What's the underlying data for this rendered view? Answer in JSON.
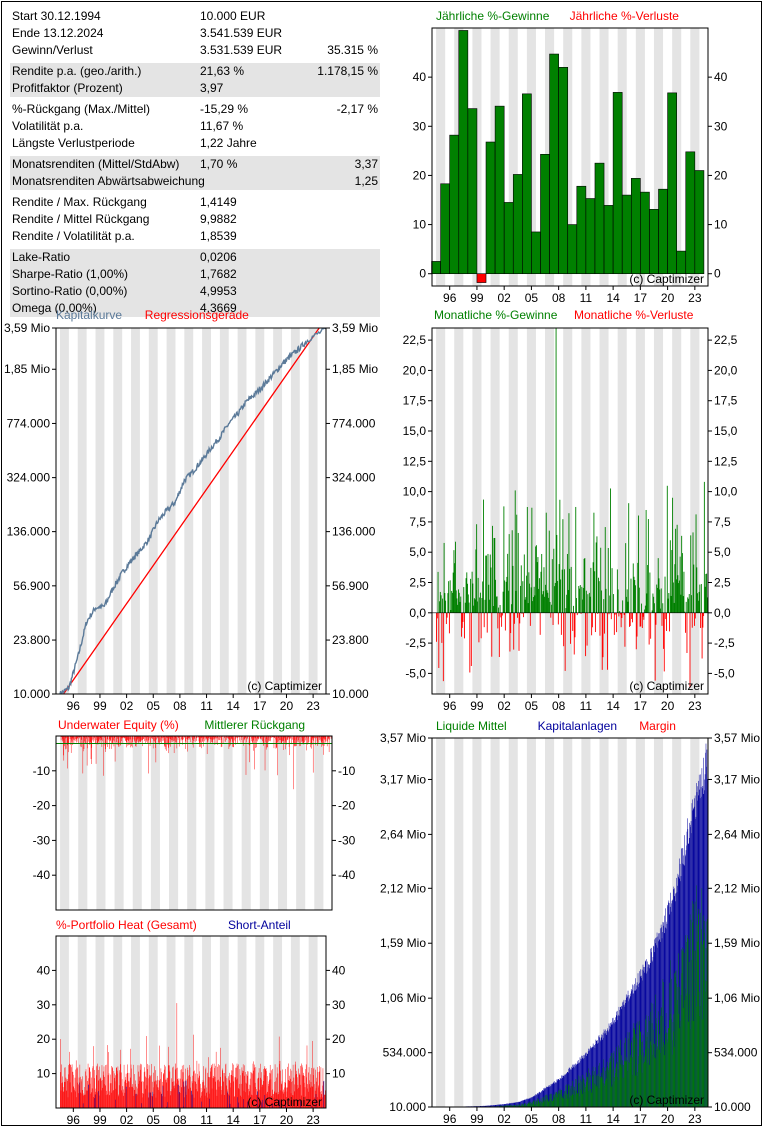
{
  "stats": {
    "groups": [
      {
        "shaded": false,
        "rows": [
          {
            "label": "Start  30.12.1994",
            "v1": "10.000 EUR",
            "v2": ""
          },
          {
            "label": "Ende  13.12.2024",
            "v1": "3.541.539 EUR",
            "v2": ""
          },
          {
            "label": "Gewinn/Verlust",
            "v1": "3.531.539 EUR",
            "v2": "35.315 %"
          }
        ]
      },
      {
        "shaded": true,
        "rows": [
          {
            "label": "Rendite p.a. (geo./arith.)",
            "v1": "21,63 %",
            "v2": "1.178,15 %"
          },
          {
            "label": "Profitfaktor (Prozent)",
            "v1": "3,97",
            "v2": ""
          }
        ]
      },
      {
        "shaded": false,
        "rows": [
          {
            "label": "%-Rückgang (Max./Mittel)",
            "v1": "-15,29 %",
            "v2": "-2,17 %"
          },
          {
            "label": "Volatilität p.a.",
            "v1": "11,67 %",
            "v2": ""
          },
          {
            "label": "Längste Verlustperiode",
            "v1": "1,22  Jahre",
            "v2": ""
          }
        ]
      },
      {
        "shaded": true,
        "rows": [
          {
            "label": "Monatsrenditen (Mittel/StdAbw)",
            "v1": "1,70 %",
            "v2": "3,37"
          },
          {
            "label": "Monatsrenditen Abwärtsabweichung",
            "v1": "",
            "v2": "1,25"
          }
        ]
      },
      {
        "shaded": false,
        "rows": [
          {
            "label": "Rendite / Max. Rückgang",
            "v1": "1,4149",
            "v2": ""
          },
          {
            "label": "Rendite / Mittel Rückgang",
            "v1": "9,9882",
            "v2": ""
          },
          {
            "label": "Rendite / Volatilität p.a.",
            "v1": "1,8539",
            "v2": ""
          }
        ]
      },
      {
        "shaded": true,
        "rows": [
          {
            "label": "Lake-Ratio",
            "v1": "0,0206",
            "v2": ""
          },
          {
            "label": "Sharpe-Ratio (1,00%)",
            "v1": "1,7682",
            "v2": ""
          },
          {
            "label": "Sortino-Ratio (0,00%)",
            "v1": "4,9953",
            "v2": ""
          },
          {
            "label": "Omega (0,00%)",
            "v1": "4,3669",
            "v2": ""
          }
        ]
      }
    ]
  },
  "colors": {
    "green": "#008000",
    "red": "#ff0000",
    "blue": "#00009c",
    "equity": "#5b7a99",
    "band": "#e4e4e4"
  },
  "chart_data": [
    {
      "id": "yearly",
      "type": "bar",
      "legend": [
        {
          "name": "Jährliche %-Gewinne",
          "color": "#008000"
        },
        {
          "name": "Jährliche %-Verluste",
          "color": "#ff0000"
        }
      ],
      "x": [
        1995,
        1996,
        1997,
        1998,
        1999,
        2000,
        2001,
        2002,
        2003,
        2004,
        2005,
        2006,
        2007,
        2008,
        2009,
        2010,
        2011,
        2012,
        2013,
        2014,
        2015,
        2016,
        2017,
        2018,
        2019,
        2020,
        2021,
        2022,
        2023,
        2024
      ],
      "values": [
        2.5,
        18.3,
        28.2,
        49.5,
        33.6,
        -1.8,
        26.8,
        34.1,
        14.5,
        20.2,
        36.6,
        8.5,
        24.3,
        44.7,
        42.0,
        10.0,
        17.8,
        15.3,
        22.5,
        13.9,
        36.9,
        16.0,
        19.4,
        16.6,
        13.1,
        17.2,
        36.8,
        4.6,
        24.8,
        21.0
      ],
      "ylim": [
        -2.5,
        50
      ],
      "yticks": [
        0,
        10,
        20,
        30,
        40
      ],
      "xticks": [
        "96",
        "99",
        "02",
        "05",
        "08",
        "11",
        "14",
        "17",
        "20",
        "23"
      ],
      "watermark": "(c) Captimizer"
    },
    {
      "id": "equity",
      "type": "line",
      "scale": "log",
      "legend": [
        {
          "name": "Kapitalkurve",
          "color": "#5b7a99"
        },
        {
          "name": "Regressionsgerade",
          "color": "#ff0000"
        }
      ],
      "points": [
        [
          1995.0,
          10000
        ],
        [
          1996.0,
          11000
        ],
        [
          1997.0,
          18000
        ],
        [
          1998.0,
          32000
        ],
        [
          1999.0,
          40000
        ],
        [
          2000.0,
          41000
        ],
        [
          2001.0,
          55000
        ],
        [
          2002.0,
          70000
        ],
        [
          2003.0,
          85000
        ],
        [
          2004.0,
          100000
        ],
        [
          2005.0,
          120000
        ],
        [
          2006.0,
          160000
        ],
        [
          2007.0,
          190000
        ],
        [
          2008.0,
          220000
        ],
        [
          2009.0,
          310000
        ],
        [
          2010.0,
          360000
        ],
        [
          2011.0,
          430000
        ],
        [
          2012.0,
          520000
        ],
        [
          2013.0,
          620000
        ],
        [
          2014.0,
          770000
        ],
        [
          2015.0,
          900000
        ],
        [
          2016.0,
          1100000
        ],
        [
          2017.0,
          1250000
        ],
        [
          2018.0,
          1450000
        ],
        [
          2019.0,
          1700000
        ],
        [
          2020.0,
          2000000
        ],
        [
          2021.0,
          2300000
        ],
        [
          2022.0,
          2600000
        ],
        [
          2023.0,
          3000000
        ],
        [
          2024.95,
          3541539
        ]
      ],
      "regression": [
        [
          1994.6,
          8500
        ],
        [
          2024.95,
          4200000
        ]
      ],
      "ylim": [
        10000,
        3590000
      ],
      "yticks": [
        {
          "v": 10000,
          "label": "10.000"
        },
        {
          "v": 23800,
          "label": "23.800"
        },
        {
          "v": 56900,
          "label": "56.900"
        },
        {
          "v": 136000,
          "label": "136.000"
        },
        {
          "v": 324000,
          "label": "324.000"
        },
        {
          "v": 774000,
          "label": "774.000"
        },
        {
          "v": 1850000,
          "label": "1,85 Mio"
        },
        {
          "v": 3590000,
          "label": "3,59 Mio"
        }
      ],
      "xticks": [
        "96",
        "99",
        "02",
        "05",
        "08",
        "11",
        "14",
        "17",
        "20",
        "23"
      ],
      "watermark": "(c) Captimizer"
    },
    {
      "id": "monthly",
      "type": "bar",
      "legend": [
        {
          "name": "Monatliche %-Gewinne",
          "color": "#008000"
        },
        {
          "name": "Monatliche %-Verluste",
          "color": "#ff0000"
        }
      ],
      "max_gain": 23.5,
      "min_loss": -6.2,
      "mean": 1.7,
      "std": 3.37,
      "ylim": [
        -6.7,
        23.5
      ],
      "yticks": [
        {
          "v": -5.0,
          "label": "-5,0"
        },
        {
          "v": -2.5,
          "label": "-2,5"
        },
        {
          "v": 0,
          "label": "0,0"
        },
        {
          "v": 2.5,
          "label": "2,5"
        },
        {
          "v": 5.0,
          "label": "5,0"
        },
        {
          "v": 7.5,
          "label": "7,5"
        },
        {
          "v": 10.0,
          "label": "10,0"
        },
        {
          "v": 12.5,
          "label": "12,5"
        },
        {
          "v": 15.0,
          "label": "15,0"
        },
        {
          "v": 17.5,
          "label": "17,5"
        },
        {
          "v": 20.0,
          "label": "20,0"
        },
        {
          "v": 22.5,
          "label": "22,5"
        }
      ],
      "xticks": [
        "96",
        "99",
        "02",
        "05",
        "08",
        "11",
        "14",
        "17",
        "20",
        "23"
      ],
      "watermark": "(c) Captimizer"
    },
    {
      "id": "underwater",
      "type": "area",
      "legend": [
        {
          "name": "Underwater Equity (%)",
          "color": "#ff0000"
        },
        {
          "name": "Mittlerer Rückgang",
          "color": "#008000"
        }
      ],
      "max_drawdown": -15.29,
      "mean_drawdown": -2.17,
      "ylim": [
        -50,
        0
      ],
      "yticks": [
        {
          "v": -10,
          "label": "-10"
        },
        {
          "v": -20,
          "label": "-20"
        },
        {
          "v": -30,
          "label": "-30"
        },
        {
          "v": -40,
          "label": "-40"
        }
      ]
    },
    {
      "id": "heat",
      "type": "bar",
      "legend": [
        {
          "name": "%-Portfolio Heat (Gesamt)",
          "color": "#ff0000"
        },
        {
          "name": "Short-Anteil",
          "color": "#00009c"
        }
      ],
      "ylim": [
        0,
        50
      ],
      "yticks": [
        {
          "v": 10,
          "label": "10"
        },
        {
          "v": 20,
          "label": "20"
        },
        {
          "v": 30,
          "label": "30"
        },
        {
          "v": 40,
          "label": "40"
        }
      ],
      "xticks": [
        "96",
        "99",
        "02",
        "05",
        "08",
        "11",
        "14",
        "17",
        "20",
        "23"
      ],
      "watermark": "(c) Captimizer"
    },
    {
      "id": "cash",
      "type": "area",
      "legend": [
        {
          "name": "Liquide Mittel",
          "color": "#008000"
        },
        {
          "name": "Kapitalanlagen",
          "color": "#00009c"
        },
        {
          "name": "Margin",
          "color": "#ff0000"
        }
      ],
      "points": [
        [
          1995,
          10000
        ],
        [
          2000,
          20000
        ],
        [
          2004,
          60000
        ],
        [
          2007,
          200000
        ],
        [
          2010,
          420000
        ],
        [
          2013,
          700000
        ],
        [
          2016,
          1100000
        ],
        [
          2019,
          1600000
        ],
        [
          2021,
          2100000
        ],
        [
          2023,
          2900000
        ],
        [
          2024.95,
          3541539
        ]
      ],
      "ylim": [
        10000,
        3570000
      ],
      "yticks": [
        {
          "v": 10000,
          "label": "10.000"
        },
        {
          "v": 534000,
          "label": "534.000"
        },
        {
          "v": 1060000,
          "label": "1,06 Mio"
        },
        {
          "v": 1590000,
          "label": "1,59 Mio"
        },
        {
          "v": 2120000,
          "label": "2,12 Mio"
        },
        {
          "v": 2640000,
          "label": "2,64 Mio"
        },
        {
          "v": 3170000,
          "label": "3,17 Mio"
        },
        {
          "v": 3570000,
          "label": "3,57 Mio"
        }
      ],
      "xticks": [
        "96",
        "99",
        "02",
        "05",
        "08",
        "11",
        "14",
        "17",
        "20",
        "23"
      ],
      "watermark": "(c) Captimizer"
    }
  ]
}
